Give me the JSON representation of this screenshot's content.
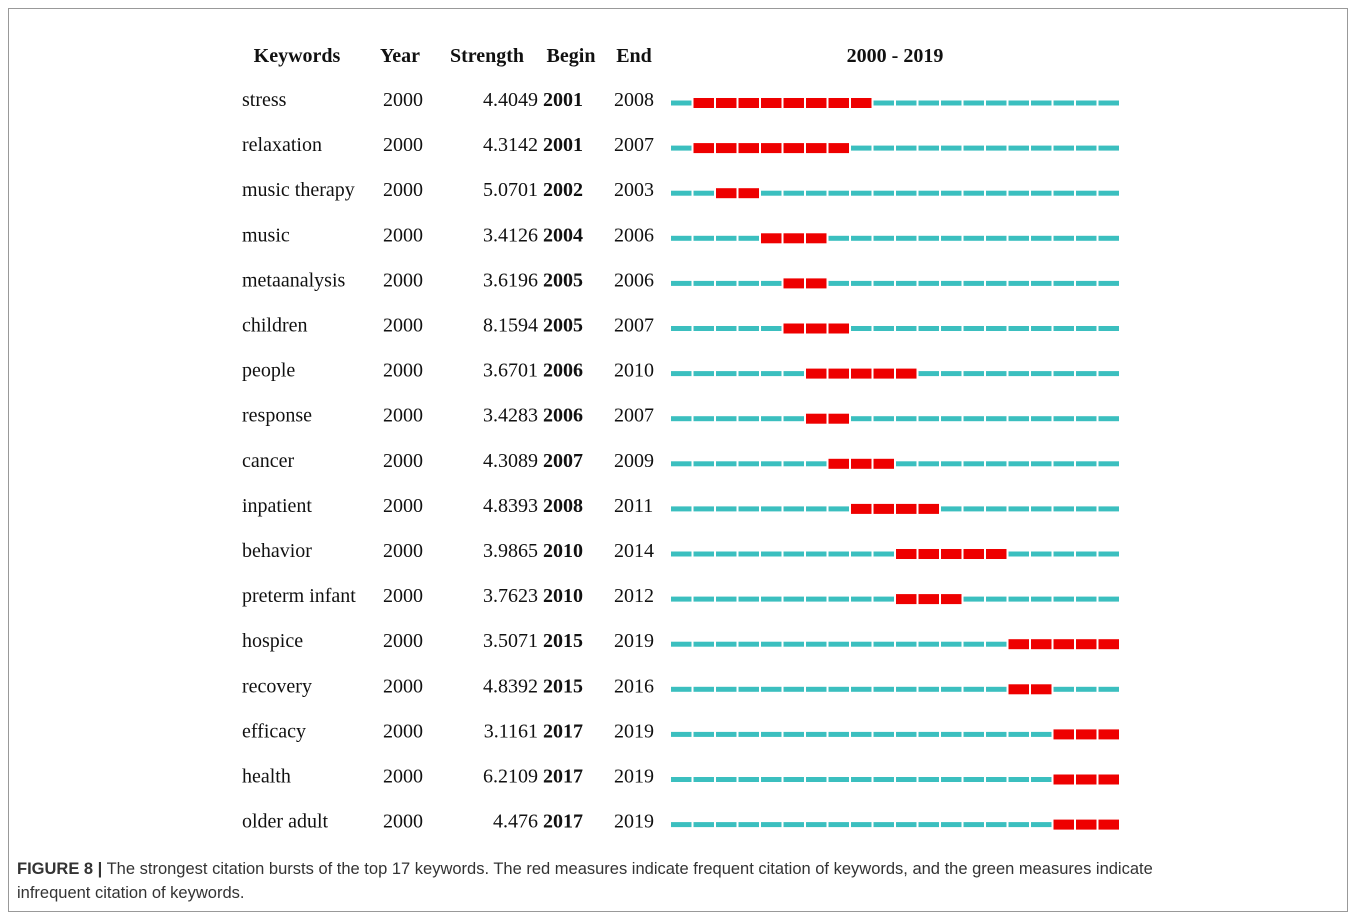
{
  "table": {
    "headers": [
      "Keywords",
      "Year",
      "Strength",
      "Begin",
      "End"
    ],
    "timeline": {
      "label": "2000 - 2019",
      "start": 2000,
      "end": 2019
    },
    "rows": [
      {
        "keyword": "stress",
        "year": 2000,
        "strength": 4.4049,
        "begin": 2001,
        "end": 2008
      },
      {
        "keyword": "relaxation",
        "year": 2000,
        "strength": 4.3142,
        "begin": 2001,
        "end": 2007
      },
      {
        "keyword": "music therapy",
        "year": 2000,
        "strength": 5.0701,
        "begin": 2002,
        "end": 2003
      },
      {
        "keyword": "music",
        "year": 2000,
        "strength": 3.4126,
        "begin": 2004,
        "end": 2006
      },
      {
        "keyword": "metaanalysis",
        "year": 2000,
        "strength": 3.6196,
        "begin": 2005,
        "end": 2006
      },
      {
        "keyword": "children",
        "year": 2000,
        "strength": 8.1594,
        "begin": 2005,
        "end": 2007
      },
      {
        "keyword": "people",
        "year": 2000,
        "strength": 3.6701,
        "begin": 2006,
        "end": 2010
      },
      {
        "keyword": "response",
        "year": 2000,
        "strength": 3.4283,
        "begin": 2006,
        "end": 2007
      },
      {
        "keyword": "cancer",
        "year": 2000,
        "strength": 4.3089,
        "begin": 2007,
        "end": 2009
      },
      {
        "keyword": "inpatient",
        "year": 2000,
        "strength": 4.8393,
        "begin": 2008,
        "end": 2011
      },
      {
        "keyword": "behavior",
        "year": 2000,
        "strength": 3.9865,
        "begin": 2010,
        "end": 2014
      },
      {
        "keyword": "preterm infant",
        "year": 2000,
        "strength": 3.7623,
        "begin": 2010,
        "end": 2012
      },
      {
        "keyword": "hospice",
        "year": 2000,
        "strength": 3.5071,
        "begin": 2015,
        "end": 2019
      },
      {
        "keyword": "recovery",
        "year": 2000,
        "strength": 4.8392,
        "begin": 2015,
        "end": 2016
      },
      {
        "keyword": "efficacy",
        "year": 2000,
        "strength": 3.1161,
        "begin": 2017,
        "end": 2019
      },
      {
        "keyword": "health",
        "year": 2000,
        "strength": 6.2109,
        "begin": 2017,
        "end": 2019
      },
      {
        "keyword": "older adult",
        "year": 2000,
        "strength": 4.476,
        "begin": 2017,
        "end": 2019
      }
    ]
  },
  "caption": {
    "label": "FIGURE 8 |",
    "line1": "The strongest citation bursts of the top 17 keywords. The red measures indicate frequent citation of keywords, and the green measures indicate",
    "line2": "infrequent citation of keywords."
  }
}
